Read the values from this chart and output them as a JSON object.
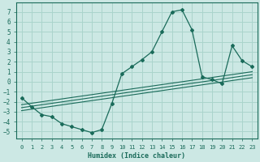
{
  "xlabel": "Humidex (Indice chaleur)",
  "bg_color": "#cce8e4",
  "grid_color": "#aad4cc",
  "line_color": "#1a6b5a",
  "xlim": [
    -0.5,
    23.5
  ],
  "ylim": [
    -5.7,
    7.9
  ],
  "xticks": [
    0,
    1,
    2,
    3,
    4,
    5,
    6,
    7,
    8,
    9,
    10,
    11,
    12,
    13,
    14,
    15,
    16,
    17,
    18,
    19,
    20,
    21,
    22,
    23
  ],
  "yticks": [
    -5,
    -4,
    -3,
    -2,
    -1,
    0,
    1,
    2,
    3,
    4,
    5,
    6,
    7
  ],
  "main_x": [
    0,
    1,
    2,
    3,
    4,
    5,
    6,
    7,
    8,
    9,
    10,
    11,
    12,
    13,
    14,
    15,
    16,
    17,
    18,
    19,
    20,
    21,
    22,
    23
  ],
  "main_y": [
    -1.6,
    -2.5,
    -3.3,
    -3.5,
    -4.2,
    -4.5,
    -4.8,
    -5.1,
    -4.8,
    -2.2,
    0.8,
    1.5,
    2.2,
    3.0,
    5.0,
    7.0,
    7.2,
    5.2,
    0.5,
    0.2,
    -0.2,
    3.6,
    2.1,
    1.5
  ],
  "reg_lines": [
    {
      "x": [
        0,
        23
      ],
      "y": [
        -2.3,
        1.0
      ]
    },
    {
      "x": [
        0,
        23
      ],
      "y": [
        -2.6,
        0.7
      ]
    },
    {
      "x": [
        0,
        23
      ],
      "y": [
        -2.9,
        0.4
      ]
    }
  ]
}
